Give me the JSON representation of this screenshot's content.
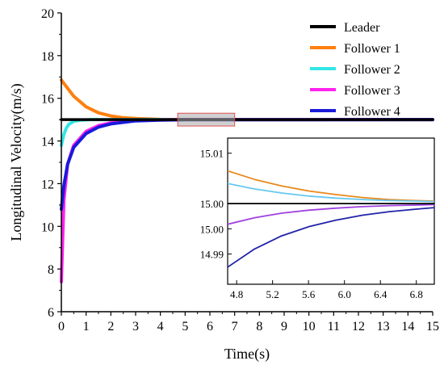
{
  "chart_data": [
    {
      "type": "line",
      "title": "",
      "xlabel": "Time(s)",
      "ylabel": "Longitudinal Velocity(m/s)",
      "xlim": [
        0,
        15
      ],
      "ylim": [
        6,
        20
      ],
      "xticks": [
        "0",
        "1",
        "2",
        "3",
        "4",
        "5",
        "6",
        "7",
        "8",
        "9",
        "10",
        "11",
        "12",
        "13",
        "14",
        "15"
      ],
      "yticks": [
        "6",
        "8",
        "10",
        "12",
        "14",
        "16",
        "18",
        "20"
      ],
      "legend_position": "top-right",
      "highlight_box": {
        "x_range": [
          4.7,
          7.0
        ],
        "y_range": [
          14.7,
          15.3
        ]
      },
      "series": [
        {
          "name": "Leader",
          "color": "#000000",
          "x": [
            0,
            15
          ],
          "y": [
            15,
            15
          ]
        },
        {
          "name": "Follower 1",
          "color": "#ff7f0e",
          "x": [
            0,
            0.5,
            1,
            1.5,
            2,
            2.5,
            3,
            4,
            5,
            6,
            8,
            15
          ],
          "y": [
            16.85,
            16.1,
            15.6,
            15.32,
            15.17,
            15.09,
            15.05,
            15.01,
            15.003,
            15.001,
            15.0,
            15.0
          ]
        },
        {
          "name": "Follower 2",
          "color": "#33e6e6",
          "x": [
            0,
            0.1,
            0.2,
            0.3,
            0.5,
            0.8,
            1.2,
            2,
            3,
            15
          ],
          "y": [
            13.8,
            14.3,
            14.6,
            14.78,
            14.92,
            14.98,
            15.0,
            15.0,
            15.0,
            15.0
          ]
        },
        {
          "name": "Follower 3",
          "color": "#ff22ee",
          "x": [
            0,
            0.1,
            0.25,
            0.5,
            1,
            1.5,
            2,
            3,
            4,
            5,
            15
          ],
          "y": [
            7.4,
            11.2,
            12.9,
            13.8,
            14.45,
            14.72,
            14.85,
            14.96,
            14.99,
            15.0,
            15.0
          ]
        },
        {
          "name": "Follower 4",
          "color": "#1a1adb",
          "x": [
            0,
            0.1,
            0.25,
            0.5,
            1,
            1.5,
            2,
            3,
            4,
            5,
            15
          ],
          "y": [
            10.8,
            11.9,
            12.9,
            13.7,
            14.35,
            14.65,
            14.8,
            14.94,
            14.98,
            14.995,
            15.0
          ]
        }
      ]
    },
    {
      "type": "line",
      "title": "",
      "xlabel": "",
      "ylabel": "",
      "xlim": [
        4.7,
        7.0
      ],
      "ylim": [
        14.984,
        15.013
      ],
      "xticks": [
        "4.8",
        "5.2",
        "5.6",
        "6.0",
        "6.4",
        "6.8"
      ],
      "yticks": [
        {
          "value": 15.01,
          "label": "15.01"
        },
        {
          "value": 15.0,
          "label": "15.00"
        },
        {
          "value": 14.995,
          "label": "15.00"
        },
        {
          "value": 14.99,
          "label": "14.99"
        }
      ],
      "series": [
        {
          "name": "Leader",
          "color": "#000000",
          "x": [
            4.7,
            7.0
          ],
          "y": [
            15.0,
            15.0
          ]
        },
        {
          "name": "Follower 1",
          "color": "#e8891c",
          "x": [
            4.7,
            5.0,
            5.3,
            5.6,
            5.9,
            6.2,
            6.5,
            6.8,
            7.0
          ],
          "y": [
            15.0065,
            15.0048,
            15.0035,
            15.0025,
            15.0018,
            15.0012,
            15.0008,
            15.0006,
            15.0005
          ]
        },
        {
          "name": "Follower 2",
          "color": "#66c8f0",
          "x": [
            4.7,
            5.0,
            5.3,
            5.6,
            5.9,
            6.2,
            6.5,
            6.8,
            7.0
          ],
          "y": [
            15.004,
            15.0029,
            15.0021,
            15.0015,
            15.0011,
            15.0008,
            15.0006,
            15.0005,
            15.0004
          ]
        },
        {
          "name": "Follower 3",
          "color": "#a040e0",
          "x": [
            4.7,
            5.0,
            5.3,
            5.6,
            5.9,
            6.2,
            6.5,
            6.8,
            7.0
          ],
          "y": [
            14.9959,
            14.9972,
            14.9981,
            14.9987,
            14.9991,
            14.9994,
            14.9996,
            14.9997,
            14.9998
          ]
        },
        {
          "name": "Follower 4",
          "color": "#2222aa",
          "x": [
            4.7,
            5.0,
            5.3,
            5.6,
            5.9,
            6.2,
            6.5,
            6.8,
            7.0
          ],
          "y": [
            14.9874,
            14.991,
            14.9936,
            14.9954,
            14.9967,
            14.9977,
            14.9984,
            14.9989,
            14.9992
          ]
        }
      ]
    }
  ]
}
